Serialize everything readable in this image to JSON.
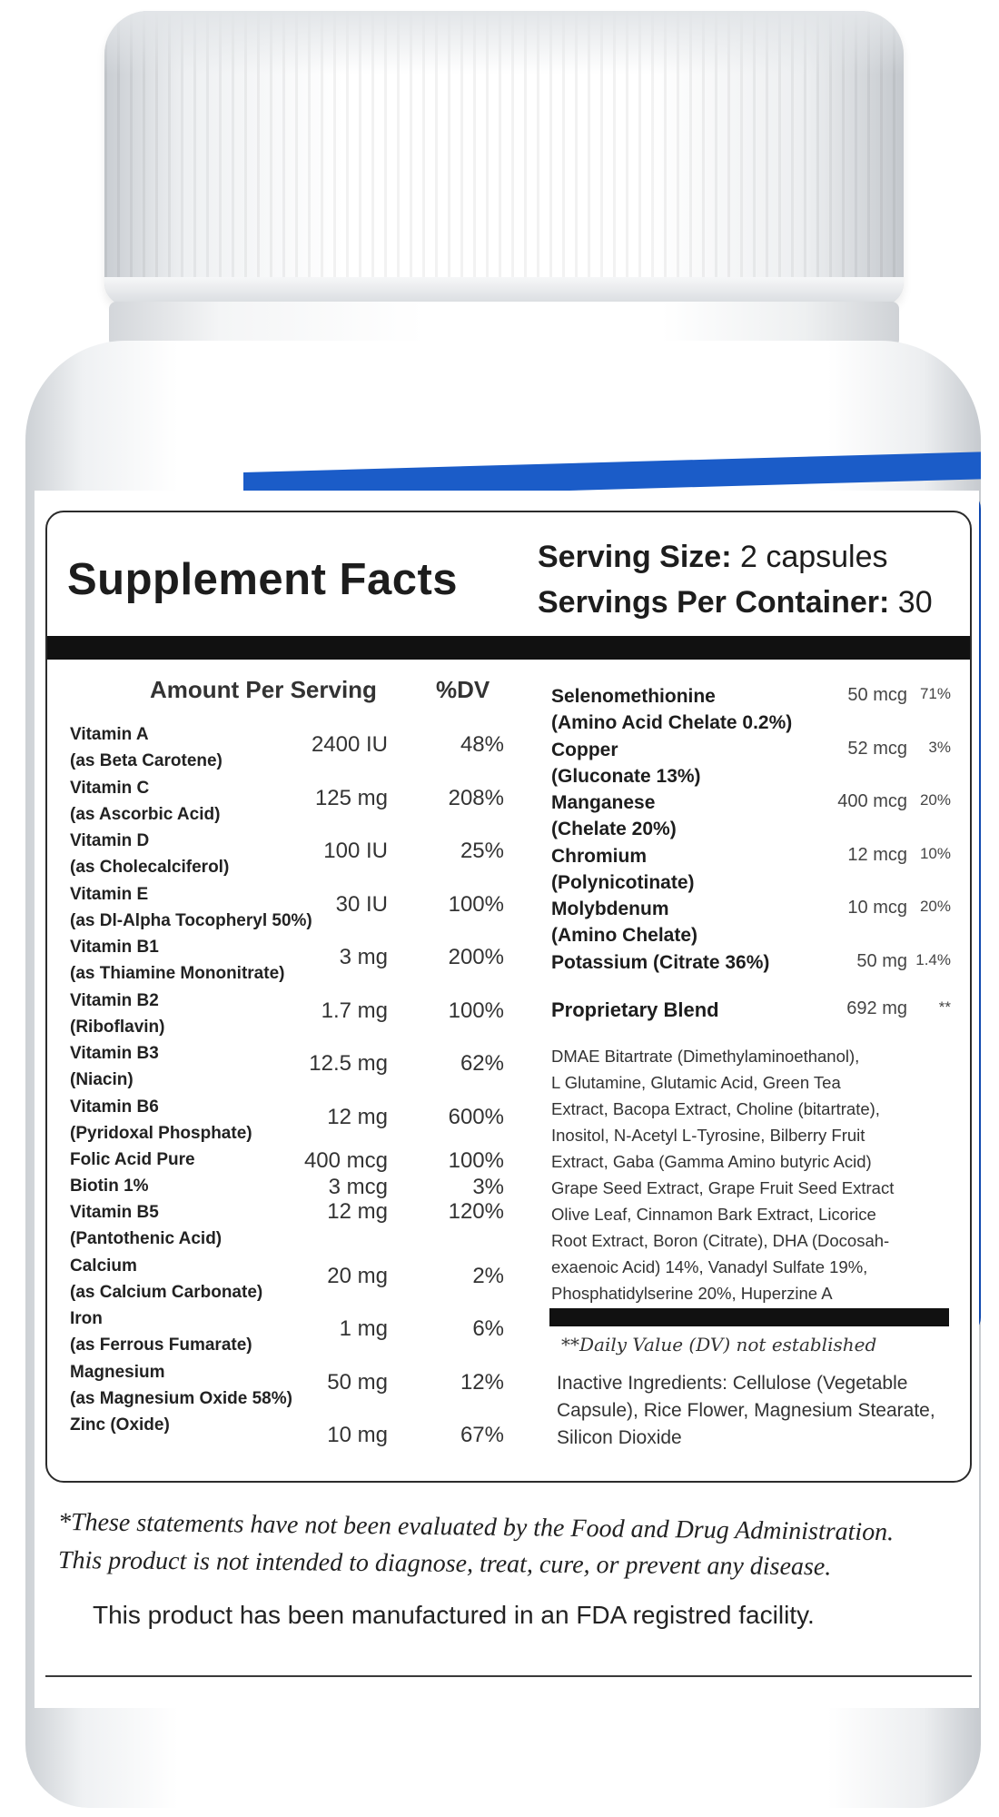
{
  "panel": {
    "title": "Supplement Facts",
    "serving_size_label": "Serving Size:",
    "serving_size_value": "2 capsules",
    "servings_per_container_label": "Servings Per Container:",
    "servings_per_container_value": "30",
    "header_amount": "Amount Per Serving",
    "header_dv": "%DV"
  },
  "left_nutrients": [
    {
      "name": "Vitamin A",
      "form": "(as Beta Carotene)",
      "amount": "2400 IU",
      "dv": "48%"
    },
    {
      "name": "Vitamin C",
      "form": "(as Ascorbic Acid)",
      "amount": "125 mg",
      "dv": "208%"
    },
    {
      "name": "Vitamin D",
      "form": "(as Cholecalciferol)",
      "amount": "100 IU",
      "dv": "25%"
    },
    {
      "name": "Vitamin E",
      "form": "(as Dl-Alpha Tocopheryl 50%)",
      "amount": "30 IU",
      "dv": "100%"
    },
    {
      "name": "Vitamin B1",
      "form": "(as Thiamine Mononitrate)",
      "amount": "3 mg",
      "dv": "200%"
    },
    {
      "name": "Vitamin B2",
      "form": "(Riboflavin)",
      "amount": "1.7 mg",
      "dv": "100%"
    },
    {
      "name": "Vitamin B3",
      "form": "(Niacin)",
      "amount": "12.5 mg",
      "dv": "62%"
    },
    {
      "name": "Vitamin B6",
      "form": "(Pyridoxal Phosphate)",
      "amount": "12 mg",
      "dv": "600%"
    },
    {
      "name": "Folic Acid Pure",
      "form": "",
      "amount": "400 mcg",
      "dv": "100%"
    },
    {
      "name": "Biotin 1%",
      "form": "",
      "amount": "3 mcg",
      "dv": "3%"
    },
    {
      "name": "Vitamin B5",
      "form": "(Pantothenic Acid)",
      "amount": "12 mg",
      "dv": "120%"
    },
    {
      "name": "Calcium",
      "form": "(as Calcium Carbonate)",
      "amount": "20 mg",
      "dv": "2%"
    },
    {
      "name": "Iron",
      "form": "(as Ferrous Fumarate)",
      "amount": "1 mg",
      "dv": "6%"
    },
    {
      "name": "Magnesium",
      "form": "(as Magnesium Oxide 58%)",
      "amount": "50 mg",
      "dv": "12%"
    },
    {
      "name": "Zinc (Oxide)",
      "form": "",
      "amount": "10 mg",
      "dv": "67%"
    }
  ],
  "right_nutrients": [
    {
      "name": "Selenomethionine",
      "form": "(Amino Acid Chelate 0.2%)",
      "amount": "50 mcg",
      "dv": "71%"
    },
    {
      "name": "Copper",
      "form": "(Gluconate 13%)",
      "amount": "52 mcg",
      "dv": "3%"
    },
    {
      "name": "Manganese",
      "form": "(Chelate 20%)",
      "amount": "400 mcg",
      "dv": "20%"
    },
    {
      "name": "Chromium",
      "form": "(Polynicotinate)",
      "amount": "12 mcg",
      "dv": "10%"
    },
    {
      "name": "Molybdenum",
      "form": "(Amino Chelate)",
      "amount": "10 mcg",
      "dv": "20%"
    },
    {
      "name": "Potassium (Citrate 36%)",
      "form": "",
      "amount": "50 mg",
      "dv": "1.4%"
    }
  ],
  "blend": {
    "name": "Proprietary Blend",
    "amount": "692 mg",
    "dv": "**",
    "ingredients_lines": [
      "DMAE Bitartrate (Dimethylaminoethanol),",
      "L Glutamine, Glutamic Acid, Green Tea",
      "Extract, Bacopa Extract, Choline (bitartrate),",
      "Inositol, N-Acetyl L-Tyrosine, Bilberry Fruit",
      "Extract, Gaba (Gamma Amino butyric Acid)",
      "Grape Seed Extract, Grape Fruit Seed Extract",
      "Olive Leaf, Cinnamon Bark Extract, Licorice",
      "Root Extract, Boron (Citrate), DHA (Docosah-",
      "exaenoic Acid) 14%, Vanadyl Sulfate 19%,",
      "Phosphatidylserine 20%, Huperzine A"
    ]
  },
  "dv_note": "**Daily Value (DV) not established",
  "inactive_lines": [
    "Inactive Ingredients: Cellulose (Vegetable",
    "Capsule), Rice Flower, Magnesium Stearate,",
    "Silicon Dioxide"
  ],
  "disclaimer": {
    "line1": "*These statements have not been evaluated by the Food and Drug Administration.",
    "line2": "This product is not intended to diagnose, treat, cure, or prevent any disease.",
    "line3": "This product has been manufactured in an FDA registred facility."
  },
  "colors": {
    "accent_blue": "#1b5cc8",
    "text": "#1d1d1d",
    "bottle": "#ffffff"
  }
}
